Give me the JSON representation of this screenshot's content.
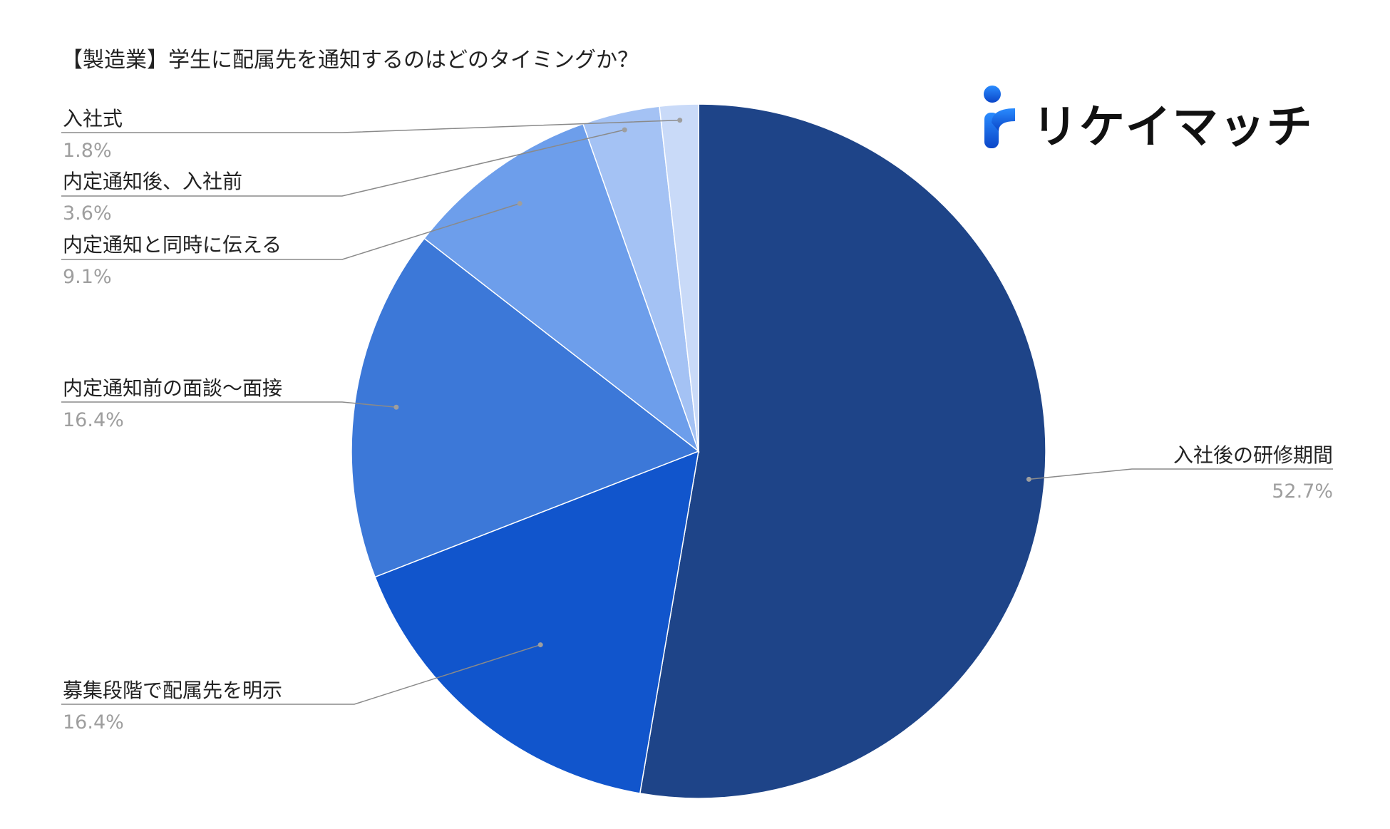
{
  "chart_data": {
    "type": "pie",
    "title": "【製造業】学生に配属先を通知するのはどのタイミングか？",
    "slices": [
      {
        "label": "入社後の研修期間",
        "value": 52.7,
        "value_label": "52.7%",
        "color": "#1e4488"
      },
      {
        "label": "募集段階で配属先を明示",
        "value": 16.4,
        "value_label": "16.4%",
        "color": "#1155cc"
      },
      {
        "label": "内定通知前の面談〜面接",
        "value": 16.4,
        "value_label": "16.4%",
        "color": "#3c78d8"
      },
      {
        "label": "内定通知と同時に伝える",
        "value": 9.1,
        "value_label": "9.1%",
        "color": "#6d9eeb"
      },
      {
        "label": "内定通知後、入社前",
        "value": 3.6,
        "value_label": "3.6%",
        "color": "#a4c2f4"
      },
      {
        "label": "入社式",
        "value": 1.8,
        "value_label": "1.8%",
        "color": "#c9daf8"
      }
    ],
    "legend": "none",
    "labels": "outside-with-leader-lines"
  },
  "logo": {
    "text": "リケイマッチ",
    "icon": "r-letter-logo-icon",
    "color": "#1155cc"
  }
}
